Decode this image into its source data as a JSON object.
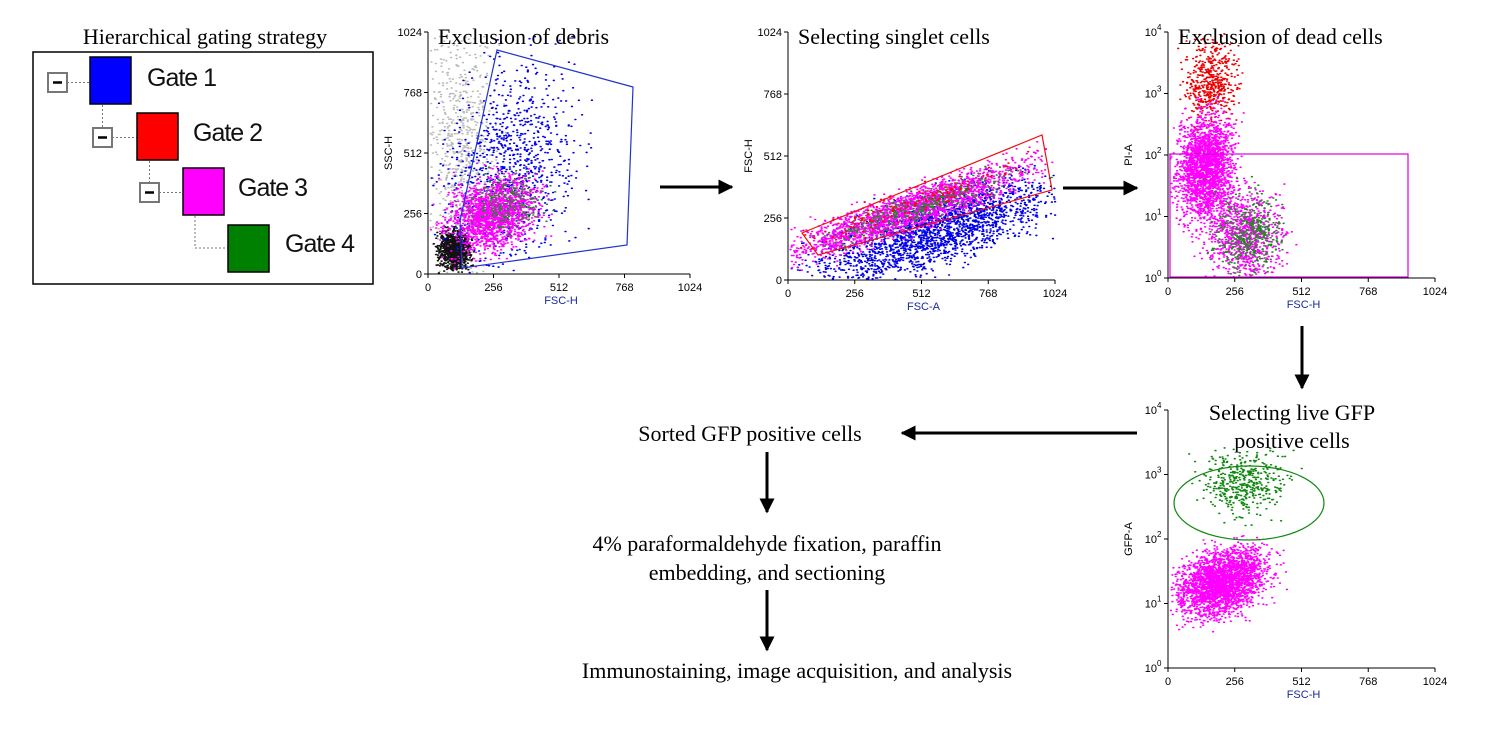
{
  "tree": {
    "title": "Hierarchical gating strategy",
    "gates": [
      {
        "label": "Gate 1",
        "color": "#0000ff"
      },
      {
        "label": "Gate 2",
        "color": "#ff0000"
      },
      {
        "label": "Gate 3",
        "color": "#ff00ff"
      },
      {
        "label": "Gate 4",
        "color": "#008000"
      }
    ]
  },
  "plots": [
    {
      "title": [
        "Exclusion of debris"
      ],
      "x_label": "FSC-H",
      "y_label": "SSC-H",
      "xlim": [
        0,
        1024
      ],
      "ylim": [
        0,
        1024
      ],
      "xticks": [
        0,
        256,
        512,
        768,
        1024
      ],
      "yticks": [
        0,
        256,
        512,
        768,
        1024
      ]
    },
    {
      "title": [
        "Selecting singlet cells"
      ],
      "x_label": "FSC-A",
      "y_label": "FSC-H",
      "xlim": [
        0,
        1024
      ],
      "ylim": [
        0,
        1024
      ],
      "xticks": [
        0,
        256,
        512,
        768,
        1024
      ],
      "yticks": [
        0,
        256,
        512,
        768,
        1024
      ]
    },
    {
      "title": [
        "Exclusion of dead cells"
      ],
      "x_label": "FSC-H",
      "y_label": "PI-A",
      "xlim": [
        0,
        1024
      ],
      "ylim": [
        1,
        10000
      ],
      "y_log": true,
      "xticks": [
        0,
        256,
        512,
        768,
        1024
      ],
      "yticks": [
        {
          "value": 1,
          "label": "10",
          "exp": "0"
        },
        {
          "value": 10,
          "label": "10",
          "exp": "1"
        },
        {
          "value": 100,
          "label": "10",
          "exp": "2"
        },
        {
          "value": 1000,
          "label": "10",
          "exp": "3"
        },
        {
          "value": 10000,
          "label": "10",
          "exp": "4"
        }
      ]
    },
    {
      "title": [
        "Selecting live  GFP",
        "positive  cells"
      ],
      "x_label": "FSC-H",
      "y_label": "GFP-A",
      "xlim": [
        0,
        1024
      ],
      "ylim": [
        1,
        10000
      ],
      "y_log": true,
      "xticks": [
        0,
        256,
        512,
        768,
        1024
      ],
      "yticks": [
        {
          "value": 1,
          "label": "10",
          "exp": "0"
        },
        {
          "value": 10,
          "label": "10",
          "exp": "1"
        },
        {
          "value": 100,
          "label": "10",
          "exp": "2"
        },
        {
          "value": 1000,
          "label": "10",
          "exp": "3"
        },
        {
          "value": 10000,
          "label": "10",
          "exp": "4"
        }
      ]
    }
  ],
  "steps": [
    [
      "Sorted GFP positive cells"
    ],
    [
      "4% paraformaldehyde fixation, paraffin",
      "embedding, and sectioning"
    ],
    [
      "Immunostaining, image acquisition, and analysis"
    ]
  ]
}
